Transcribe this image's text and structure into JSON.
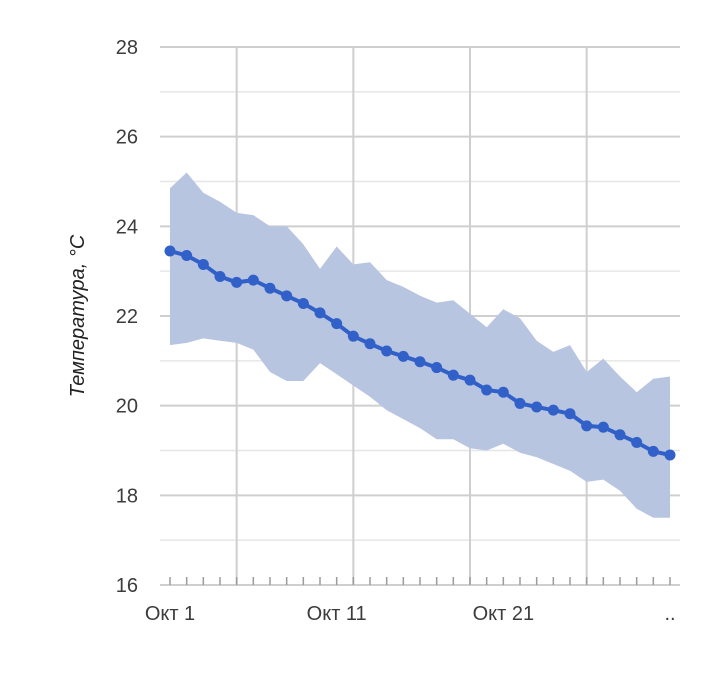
{
  "chart_data": {
    "type": "line",
    "title": "",
    "xlabel": "",
    "ylabel": "Температура, °C",
    "ylim": [
      16,
      28
    ],
    "yticks": [
      16,
      18,
      20,
      22,
      24,
      26,
      28
    ],
    "x_tick_labels": [
      {
        "day": 1,
        "label": "Окт 1"
      },
      {
        "day": 11,
        "label": "Окт 11"
      },
      {
        "day": 21,
        "label": "Окт 21"
      },
      {
        "day": 31,
        "label": ".."
      }
    ],
    "x": [
      1,
      2,
      3,
      4,
      5,
      6,
      7,
      8,
      9,
      10,
      11,
      12,
      13,
      14,
      15,
      16,
      17,
      18,
      19,
      20,
      21,
      22,
      23,
      24,
      25,
      26,
      27,
      28,
      29,
      30,
      31
    ],
    "series": [
      {
        "values": [
          23.45,
          23.35,
          23.15,
          22.88,
          22.75,
          22.8,
          22.62,
          22.45,
          22.28,
          22.07,
          21.83,
          21.55,
          21.38,
          21.22,
          21.1,
          20.98,
          20.85,
          20.68,
          20.57,
          20.35,
          20.3,
          20.05,
          19.97,
          19.9,
          19.82,
          19.55,
          19.52,
          19.35,
          19.18,
          18.98,
          18.9
        ],
        "color": "#3060c8"
      }
    ],
    "band": {
      "upper": [
        24.85,
        25.2,
        24.75,
        24.55,
        24.3,
        24.25,
        24.0,
        24.0,
        23.6,
        23.05,
        23.55,
        23.15,
        23.2,
        22.8,
        22.65,
        22.45,
        22.3,
        22.35,
        22.05,
        21.75,
        22.15,
        21.95,
        21.45,
        21.2,
        21.35,
        20.75,
        21.05,
        20.65,
        20.3,
        20.6,
        20.65
      ],
      "lower": [
        21.35,
        21.4,
        21.5,
        21.45,
        21.4,
        21.25,
        20.75,
        20.55,
        20.55,
        20.95,
        20.7,
        20.45,
        20.2,
        19.9,
        19.7,
        19.5,
        19.25,
        19.25,
        19.05,
        19.0,
        19.15,
        18.95,
        18.85,
        18.7,
        18.55,
        18.3,
        18.35,
        18.1,
        17.7,
        17.5,
        17.5
      ],
      "color": "#b8c5e0"
    },
    "grid": true,
    "legend": "none"
  }
}
